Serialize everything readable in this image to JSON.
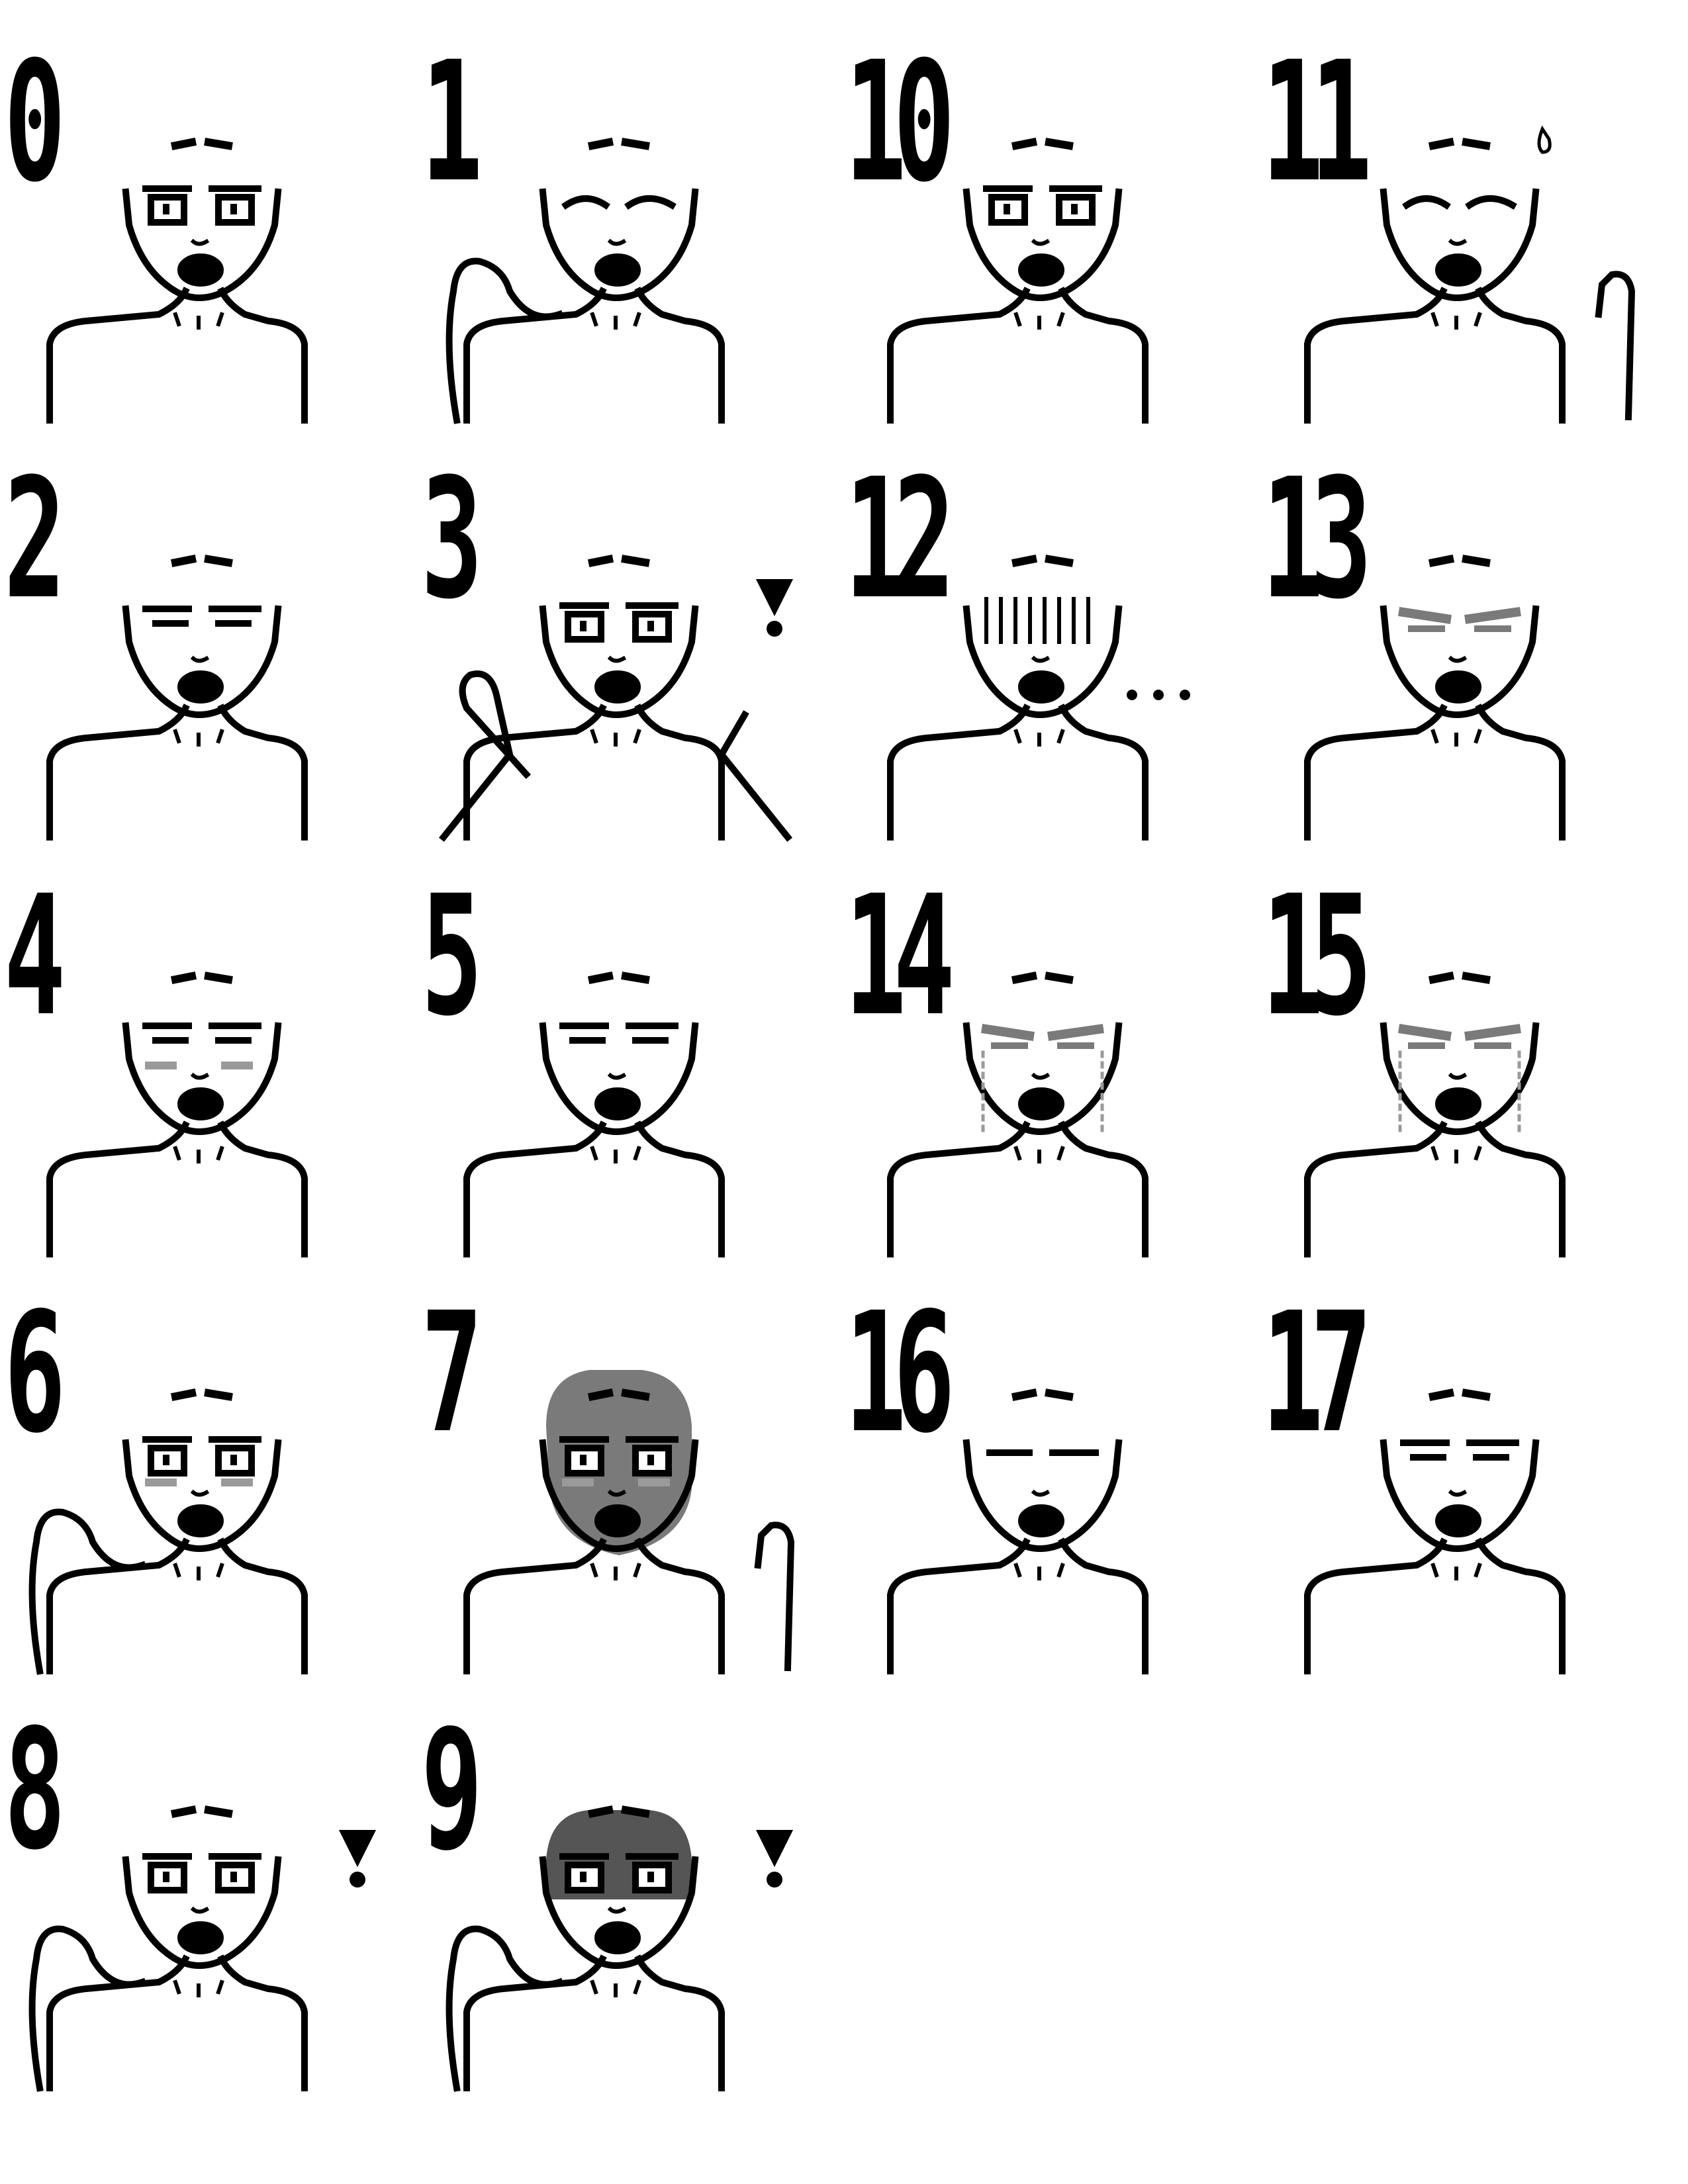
{
  "sheet": {
    "frames": [
      {
        "label": "0",
        "pose": "neutral",
        "hand": "none",
        "mark": "none"
      },
      {
        "label": "1",
        "pose": "eyes-closed-smile",
        "hand": "left-to-face",
        "mark": "none"
      },
      {
        "label": "2",
        "pose": "half-closed",
        "hand": "none",
        "mark": "none"
      },
      {
        "label": "3",
        "pose": "surprised",
        "hand": "both-raised",
        "mark": "exclamation"
      },
      {
        "label": "4",
        "pose": "blush-half-closed",
        "hand": "none",
        "mark": "none"
      },
      {
        "label": "5",
        "pose": "smug",
        "hand": "none",
        "mark": "none"
      },
      {
        "label": "6",
        "pose": "blush-smile",
        "hand": "left-to-face",
        "mark": "none"
      },
      {
        "label": "7",
        "pose": "dark-face",
        "hand": "right-to-face",
        "mark": "none"
      },
      {
        "label": "8",
        "pose": "neutral",
        "hand": "left-raised",
        "mark": "exclamation"
      },
      {
        "label": "9",
        "pose": "dark-eyes-band",
        "hand": "left-raised",
        "mark": "exclamation"
      },
      {
        "label": "10",
        "pose": "neutral",
        "hand": "none",
        "mark": "none"
      },
      {
        "label": "11",
        "pose": "eyes-closed-smile",
        "hand": "right-to-face",
        "mark": "sweat-drop"
      },
      {
        "label": "12",
        "pose": "shadow-lines",
        "hand": "none",
        "mark": "ellipsis"
      },
      {
        "label": "13",
        "pose": "sad",
        "hand": "none",
        "mark": "none"
      },
      {
        "label": "14",
        "pose": "teary",
        "hand": "none",
        "mark": "none"
      },
      {
        "label": "15",
        "pose": "crying",
        "hand": "none",
        "mark": "none"
      },
      {
        "label": "16",
        "pose": "eyes-shut",
        "hand": "none",
        "mark": "none"
      },
      {
        "label": "17",
        "pose": "half-closed",
        "hand": "none",
        "mark": "none"
      }
    ],
    "colors": {
      "ink": "#000000",
      "paper": "#ffffff",
      "shade": "#7a7a7a",
      "shade_dark": "#555555",
      "blush": "#9a9a9a"
    }
  }
}
